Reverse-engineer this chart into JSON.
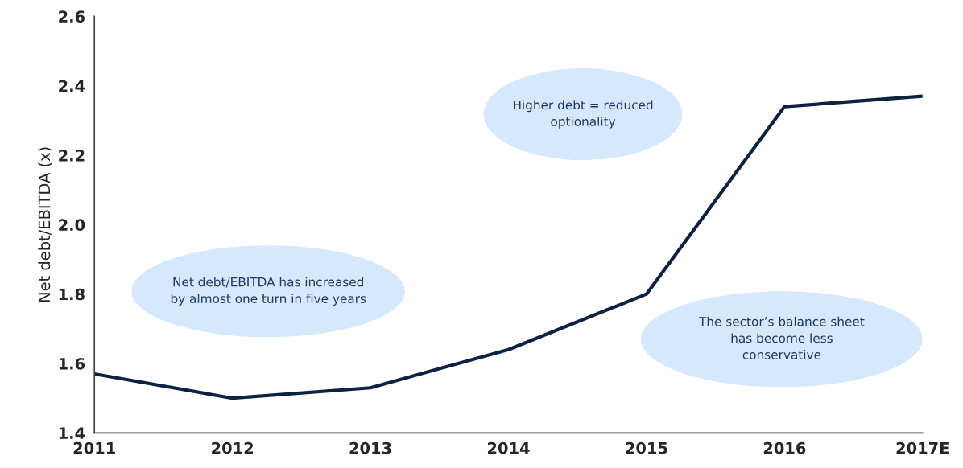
{
  "chart_data": {
    "type": "line",
    "ylabel": "Net debt/EBITDA (x)",
    "categories": [
      "2011",
      "2012",
      "2013",
      "2014",
      "2015",
      "2016",
      "2017E"
    ],
    "series": [
      {
        "color": "#0d2240",
        "values": [
          1.57,
          1.5,
          1.53,
          1.64,
          1.8,
          2.34,
          2.37
        ]
      }
    ],
    "ylim": [
      1.4,
      2.6
    ],
    "yticks": [
      {
        "value": 1.4,
        "label": "1.4"
      },
      {
        "value": 1.6,
        "label": "1.6"
      },
      {
        "value": 1.8,
        "label": "1.8"
      },
      {
        "value": 2.0,
        "label": "2.0"
      },
      {
        "value": 2.2,
        "label": "2.2"
      },
      {
        "value": 2.4,
        "label": "2.4"
      },
      {
        "value": 2.6,
        "label": "2.6"
      }
    ],
    "annotations": [
      "Higher debt = reduced\noptionality",
      "Net debt/EBITDA has increased\nby almost one turn in five years",
      "The sector’s balance sheet\nhas become less\nconservative"
    ],
    "grid": false,
    "legend": false,
    "marker": "none",
    "line_style": "solid"
  }
}
